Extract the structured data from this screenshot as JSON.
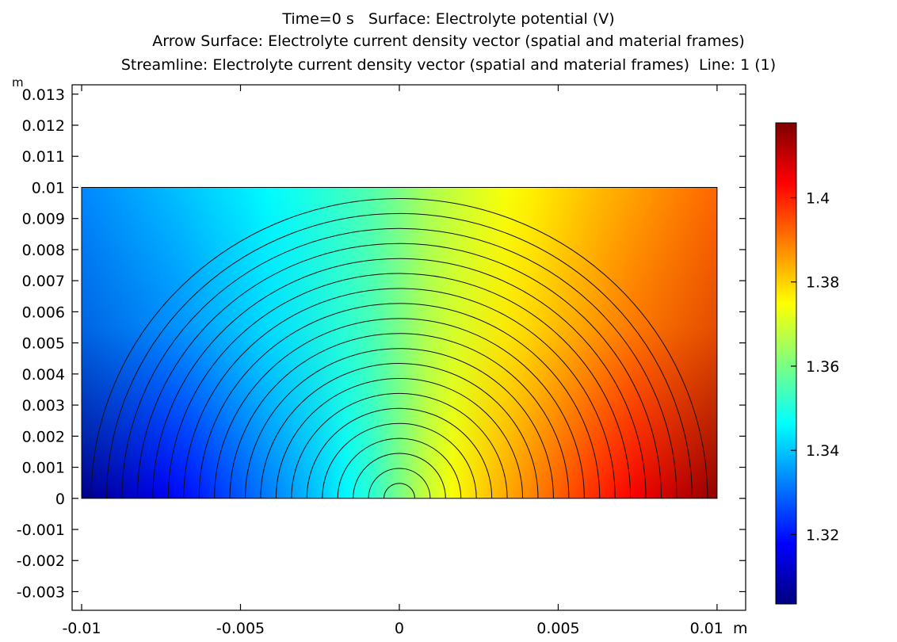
{
  "chart_data": {
    "type": "heatmap",
    "title_lines": [
      "Time=0 s   Surface: Electrolyte potential (V)",
      "Arrow Surface: Electrolyte current density vector (spatial and material frames)",
      "Streamline: Electrolyte current density vector (spatial and material frames)  Line: 1 (1)"
    ],
    "x_unit": "m",
    "y_unit": "m",
    "xlim": [
      -0.0103,
      0.0109
    ],
    "ylim": [
      -0.0036,
      0.0133
    ],
    "x_ticks": [
      -0.01,
      -0.005,
      0,
      0.005,
      0.01
    ],
    "x_tick_labels": [
      "-0.01",
      "-0.005",
      "0",
      "0.005",
      "0.01"
    ],
    "y_ticks": [
      0.013,
      0.012,
      0.011,
      0.01,
      0.009,
      0.008,
      0.007,
      0.006,
      0.005,
      0.004,
      0.003,
      0.002,
      0.001,
      0,
      -0.001,
      -0.002,
      -0.003
    ],
    "y_tick_labels": [
      "0.013",
      "0.012",
      "0.011",
      "0.01",
      "0.009",
      "0.008",
      "0.007",
      "0.006",
      "0.005",
      "0.004",
      "0.003",
      "0.002",
      "0.001",
      "0",
      "-0.001",
      "-0.002",
      "-0.003"
    ],
    "domain": {
      "x": [
        -0.01,
        0.01
      ],
      "y": [
        0,
        0.01
      ]
    },
    "surface_field": "Electrolyte potential (V)",
    "value_range": [
      1.305,
      1.4155
    ],
    "value_at_corners": {
      "bottom_left": 1.305,
      "top_left": 1.333,
      "top_right": 1.392,
      "bottom_right": 1.4155,
      "origin": 1.36
    },
    "streamline_count": 20,
    "colorbar": {
      "ticks": [
        1.4,
        1.38,
        1.36,
        1.34,
        1.32
      ],
      "tick_labels": [
        "1.4",
        "1.38",
        "1.36",
        "1.34",
        "1.32"
      ],
      "range": [
        1.3035,
        1.4178
      ]
    },
    "colormap": [
      "#00007f",
      "#0000ff",
      "#007fff",
      "#00ffff",
      "#7fff7f",
      "#ffff00",
      "#ff7f00",
      "#ff0000",
      "#7f0000"
    ]
  }
}
